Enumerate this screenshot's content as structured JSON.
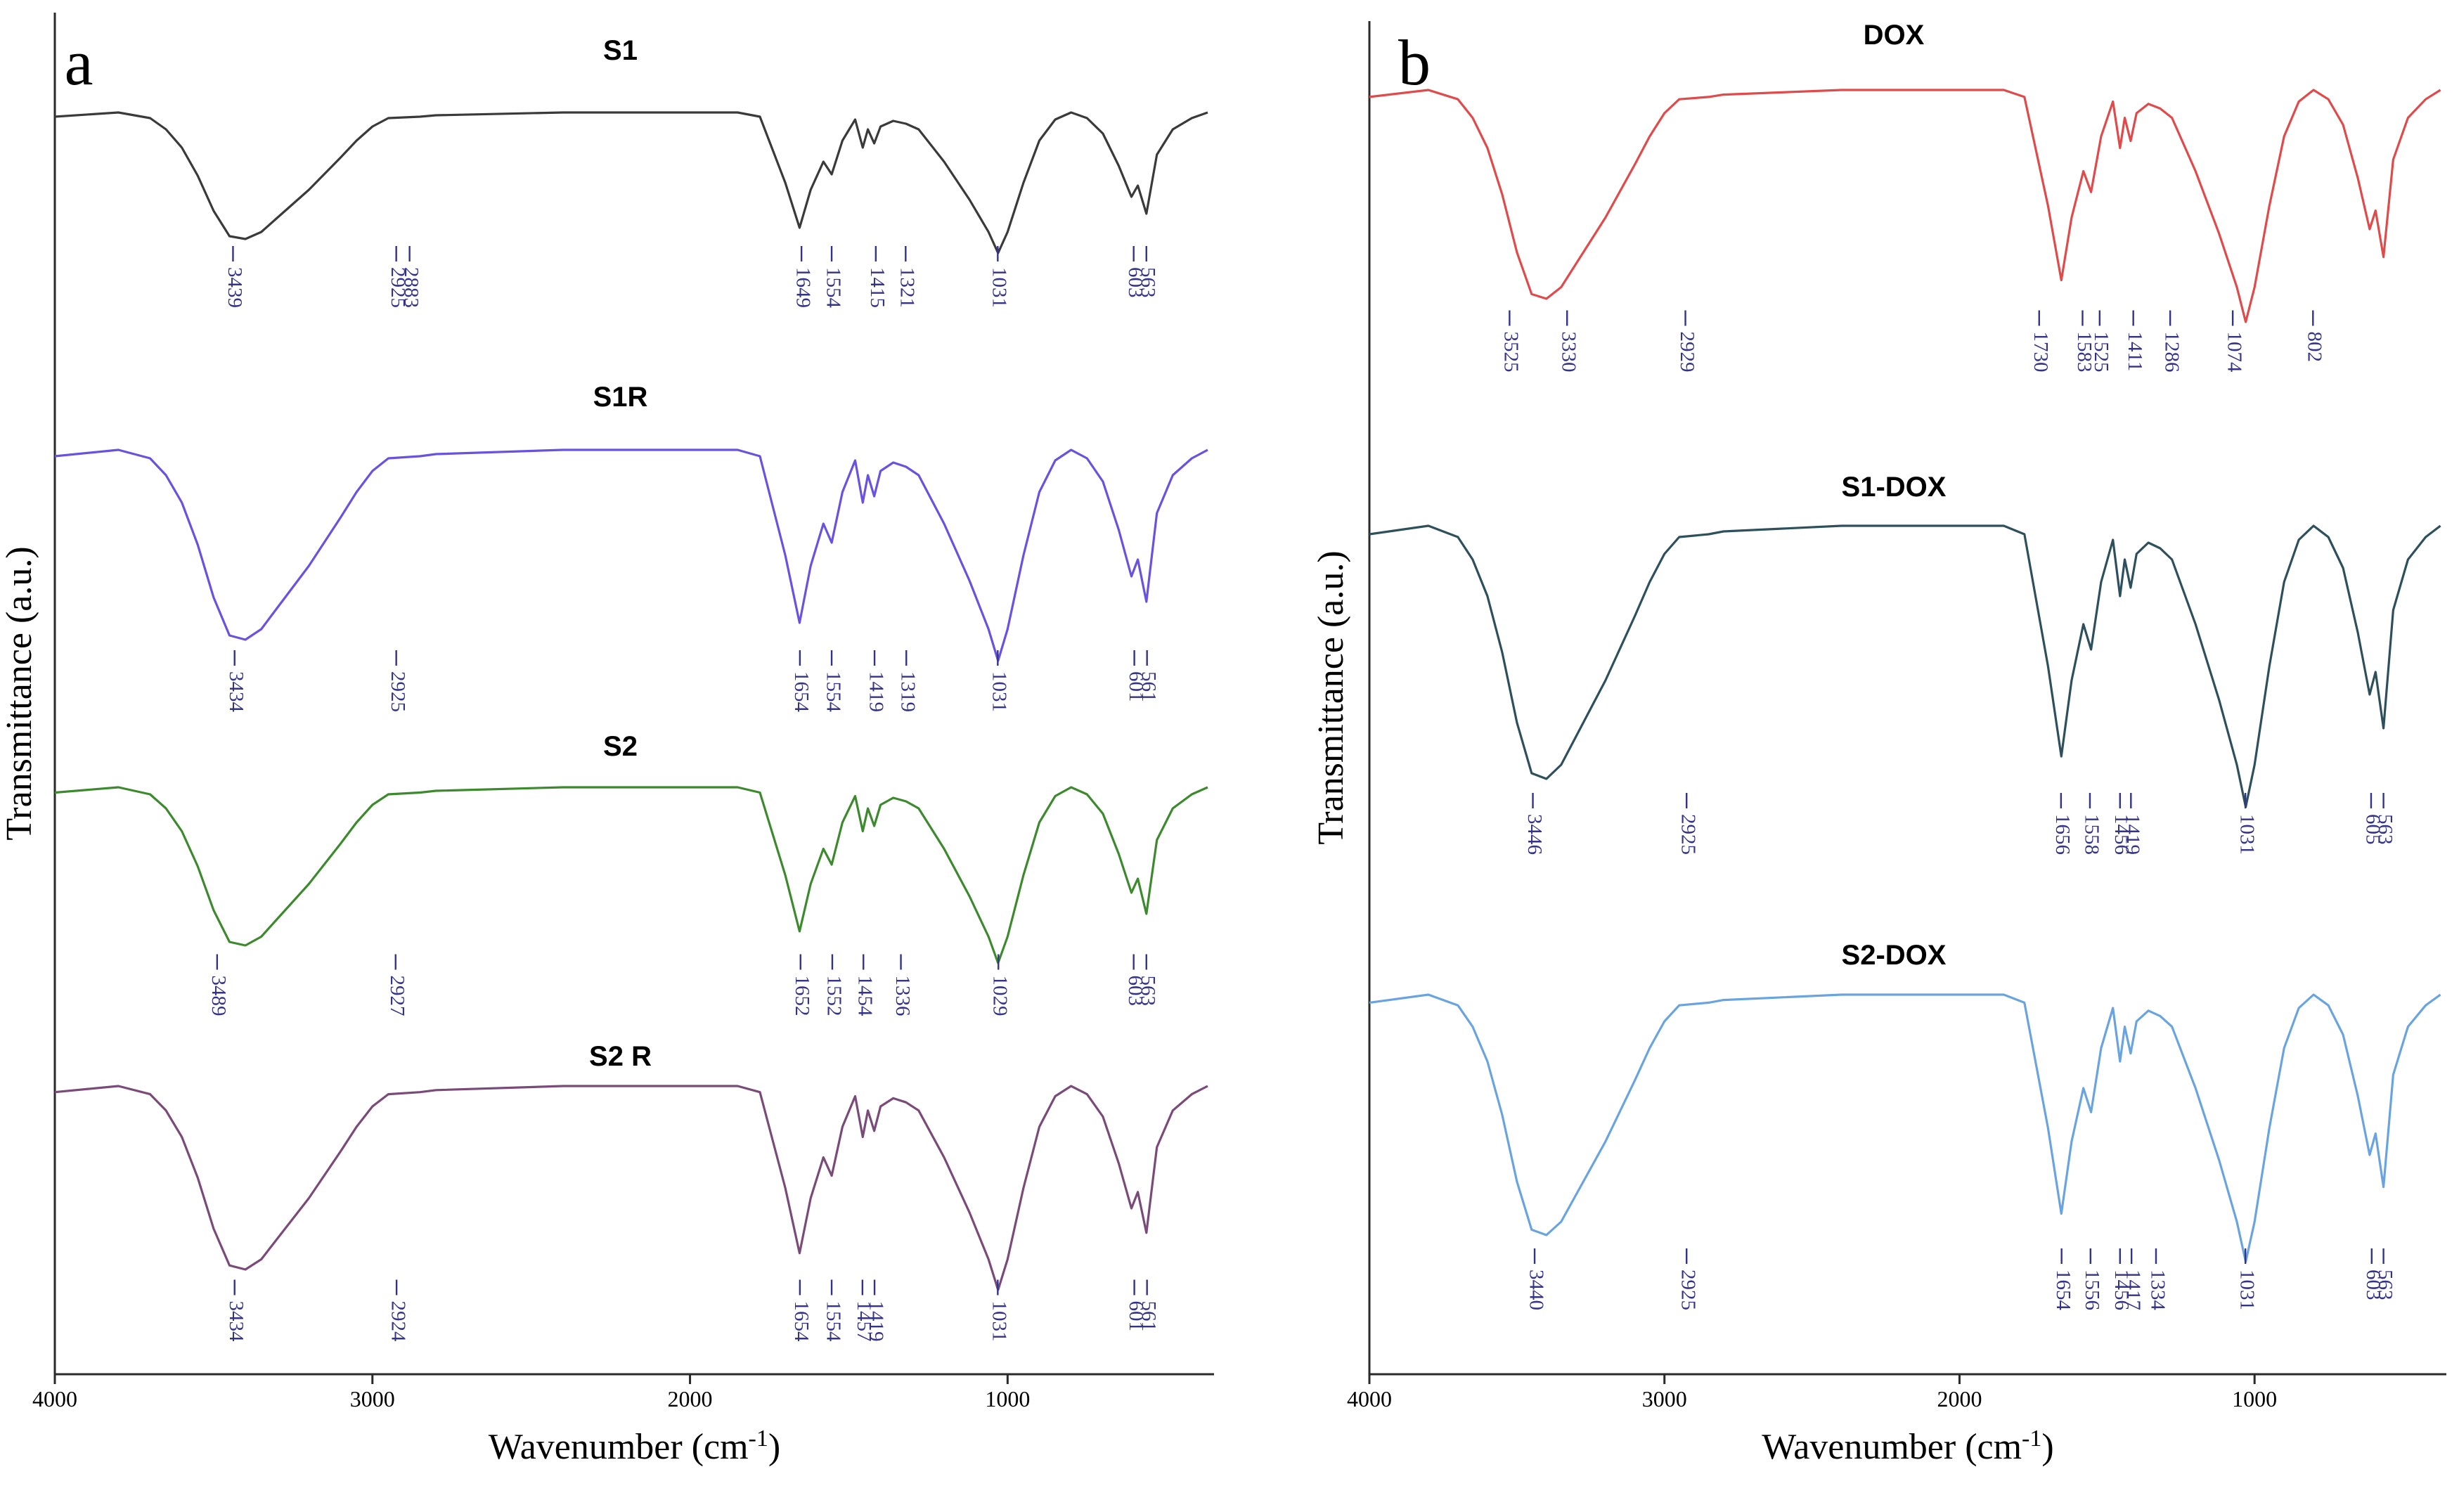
{
  "chart_data": [
    {
      "type": "line",
      "panel": "a",
      "xlabel": "Wavenumber (cm-1)",
      "xlabel_main": "Wavenumber (cm",
      "xlabel_sup": "-1",
      "xlabel_end": ")",
      "ylabel": "Transmittance (a.u.)",
      "xlim": [
        4000,
        350
      ],
      "xticks": [
        4000,
        3000,
        2000,
        1000
      ],
      "series": [
        {
          "name": "S1",
          "color": "#3a3a3a",
          "peaks": [
            3439,
            2925,
            2883,
            1649,
            1554,
            1415,
            1321,
            1031,
            603,
            563
          ]
        },
        {
          "name": "S1R",
          "color": "#6a52e0",
          "peaks": [
            3434,
            2925,
            1654,
            1554,
            1419,
            1319,
            1031,
            601,
            561
          ]
        },
        {
          "name": "S2",
          "color": "#3d8a2e",
          "peaks": [
            3489,
            2927,
            1652,
            1552,
            1454,
            1336,
            1029,
            603,
            563
          ]
        },
        {
          "name": "S2 R",
          "color": "#7a4a78",
          "peaks": [
            3434,
            2924,
            1654,
            1554,
            1457,
            1419,
            1031,
            601,
            561
          ]
        }
      ]
    },
    {
      "type": "line",
      "panel": "b",
      "xlabel": "Wavenumber (cm-1)",
      "xlabel_main": "Wavenumber (cm",
      "xlabel_sup": "-1",
      "xlabel_end": ")",
      "ylabel": "Transmittance (a.u.)",
      "xlim": [
        4000,
        350
      ],
      "xticks": [
        4000,
        3000,
        2000,
        1000
      ],
      "series": [
        {
          "name": "DOX",
          "color": "#e04a4a",
          "peaks": [
            3525,
            3330,
            2929,
            1730,
            1583,
            1525,
            1411,
            1286,
            1074,
            802
          ]
        },
        {
          "name": "S1-DOX",
          "color": "#2e4f5c",
          "peaks": [
            3446,
            2925,
            1656,
            1558,
            1456,
            1419,
            1031,
            605,
            563
          ]
        },
        {
          "name": "S2-DOX",
          "color": "#6aa4e0",
          "peaks": [
            3440,
            2925,
            1654,
            1556,
            1456,
            1417,
            1334,
            1031,
            603,
            563
          ]
        }
      ]
    }
  ]
}
